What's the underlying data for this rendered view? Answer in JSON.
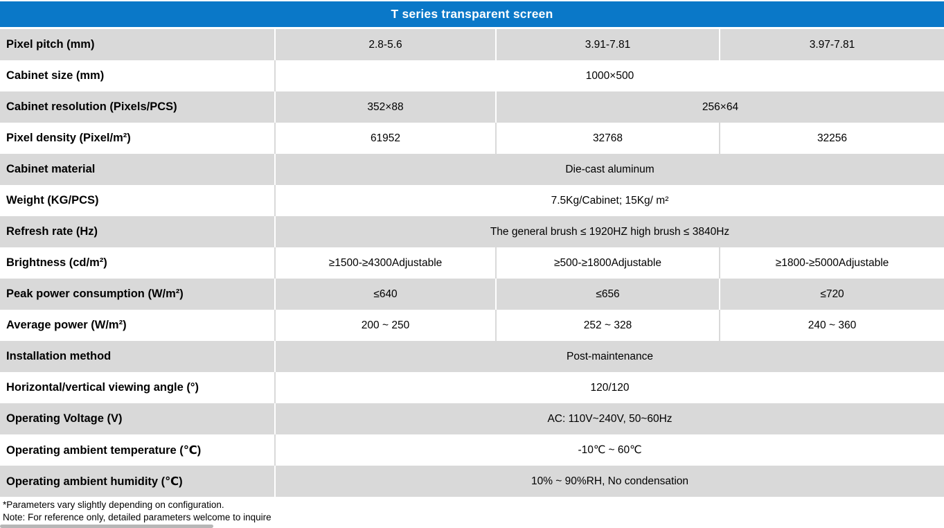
{
  "title": "T series transparent screen",
  "colors": {
    "header_bg": "#0A78C8",
    "header_text": "#FFFFFF",
    "row_shaded_bg": "#D9D9D9",
    "row_plain_bg": "#FFFFFF",
    "divider_on_shaded": "#FFFFFF",
    "divider_on_plain": "#D9D9D9",
    "scrollbar": "#B7B7B7"
  },
  "table": {
    "label_column_width": 398,
    "data_column_widths": [
      319,
      323,
      323
    ],
    "rows": [
      {
        "label": "Pixel pitch (mm)",
        "cells": [
          {
            "text": "2.8-5.6",
            "span": 1
          },
          {
            "text": "3.91-7.81",
            "span": 1
          },
          {
            "text": "3.97-7.81",
            "span": 1
          }
        ]
      },
      {
        "label": "Cabinet size (mm)",
        "cells": [
          {
            "text": "1000×500",
            "span": 3
          }
        ]
      },
      {
        "label": "Cabinet resolution (Pixels/PCS)",
        "cells": [
          {
            "text": "352×88",
            "span": 1
          },
          {
            "text": "256×64",
            "span": 2
          }
        ]
      },
      {
        "label": "Pixel density (Pixel/m²)",
        "cells": [
          {
            "text": "61952",
            "span": 1
          },
          {
            "text": "32768",
            "span": 1
          },
          {
            "text": "32256",
            "span": 1
          }
        ]
      },
      {
        "label": "Cabinet material",
        "cells": [
          {
            "text": "Die-cast aluminum",
            "span": 3
          }
        ]
      },
      {
        "label": "Weight (KG/PCS)",
        "cells": [
          {
            "text": "7.5Kg/Cabinet;  15Kg/ m²",
            "span": 3
          }
        ]
      },
      {
        "label": "Refresh rate (Hz)",
        "cells": [
          {
            "text": "The general brush ≤ 1920HZ high brush ≤ 3840Hz",
            "span": 3
          }
        ]
      },
      {
        "label": "Brightness (cd/m²)",
        "cells": [
          {
            "text": "≥1500-≥4300Adjustable",
            "span": 1
          },
          {
            "text": "≥500-≥1800Adjustable",
            "span": 1
          },
          {
            "text": "≥1800-≥5000Adjustable",
            "span": 1
          }
        ]
      },
      {
        "label": "Peak power consumption (W/m²)",
        "cells": [
          {
            "text": "≤640",
            "span": 1
          },
          {
            "text": "≤656",
            "span": 1
          },
          {
            "text": "≤720",
            "span": 1
          }
        ]
      },
      {
        "label": "Average power (W/m²)",
        "cells": [
          {
            "text": "200 ~ 250",
            "span": 1
          },
          {
            "text": "252 ~ 328",
            "span": 1
          },
          {
            "text": "240 ~ 360",
            "span": 1
          }
        ]
      },
      {
        "label": "Installation method",
        "cells": [
          {
            "text": "Post-maintenance",
            "span": 3
          }
        ]
      },
      {
        "label": "Horizontal/vertical viewing angle (°)",
        "cells": [
          {
            "text": "120/120",
            "span": 3
          }
        ]
      },
      {
        "label": "Operating Voltage (V)",
        "cells": [
          {
            "text": "AC: 110V~240V, 50~60Hz",
            "span": 3
          }
        ]
      },
      {
        "label": "Operating ambient temperature (℃)",
        "cells": [
          {
            "text": "-10℃ ~ 60℃",
            "span": 3
          }
        ]
      },
      {
        "label": "Operating ambient humidity (℃)",
        "cells": [
          {
            "text": "10% ~ 90%RH,  No condensation",
            "span": 3
          }
        ]
      }
    ]
  },
  "footnotes": {
    "line1": "*Parameters vary slightly depending on configuration.",
    "line2": "Note: For reference only, detailed parameters welcome to inquire"
  }
}
